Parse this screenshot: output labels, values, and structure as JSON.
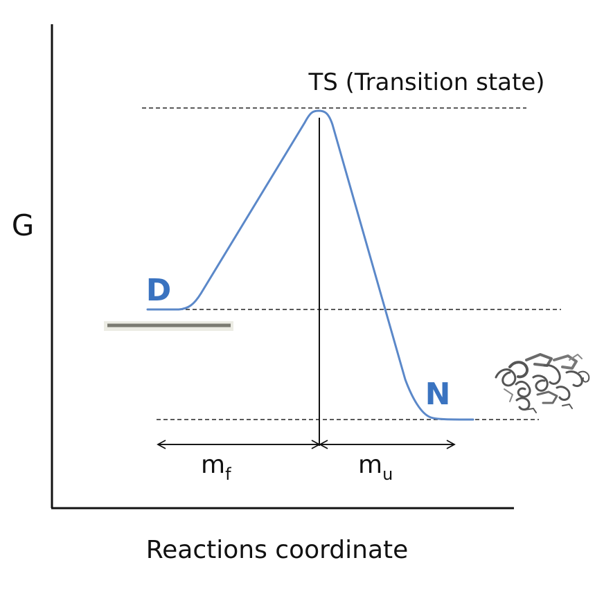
{
  "diagram": {
    "y_axis_label": "G",
    "x_axis_label": "Reactions coordinate",
    "transition_state_label": "TS (Transition state)",
    "denatured_label": "D",
    "native_label": "N",
    "m_f": {
      "base": "m",
      "sub": "f"
    },
    "m_u": {
      "base": "m",
      "sub": "u"
    },
    "protein_icon": "protein-ribbon-structure-icon",
    "colors": {
      "curve": "#5b88c9",
      "state_label": "#3a73c0",
      "axis": "#111111",
      "dashed_line": "#222222",
      "gray_bar": "#7b7b72"
    }
  }
}
